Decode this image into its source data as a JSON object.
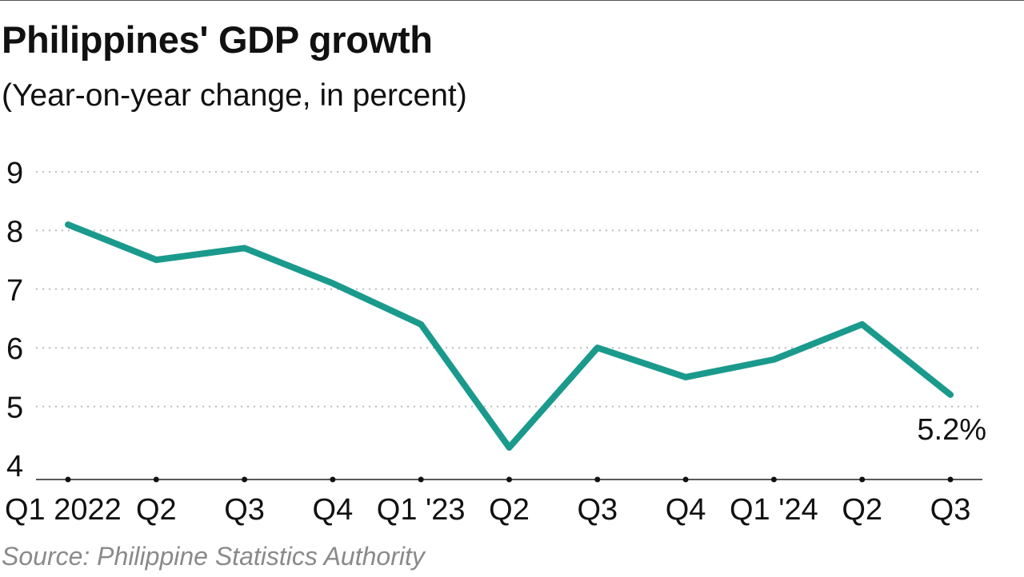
{
  "chart_data": {
    "type": "line",
    "title": "Philippines' GDP growth",
    "subtitle": "(Year-on-year change, in percent)",
    "source": "Source: Philippine Statistics Authority",
    "categories": [
      "Q1 2022",
      "Q2",
      "Q3",
      "Q4",
      "Q1 '23",
      "Q2",
      "Q3",
      "Q4",
      "Q1 '24",
      "Q2",
      "Q3"
    ],
    "values": [
      8.1,
      7.5,
      7.7,
      7.1,
      6.4,
      4.3,
      6.0,
      5.5,
      5.8,
      6.4,
      5.2
    ],
    "yticks": [
      4,
      5,
      6,
      7,
      8,
      9
    ],
    "ylim": [
      4,
      9
    ],
    "grid": "horizontal dotted",
    "end_label": "5.2%",
    "line_color": "#1a9a8c",
    "xlabel": "",
    "ylabel": ""
  }
}
